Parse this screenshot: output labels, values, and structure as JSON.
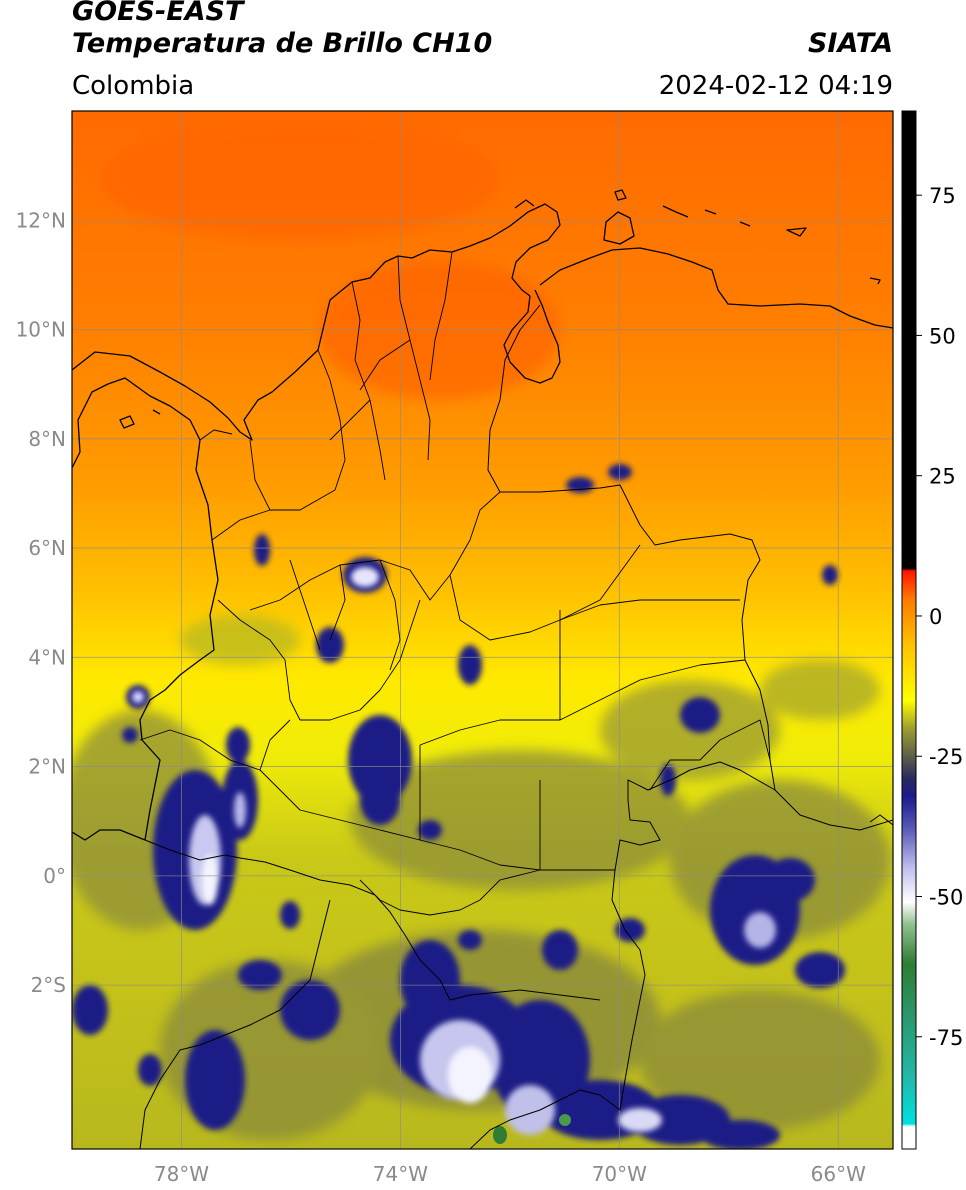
{
  "header": {
    "satellite": "GOES-EAST",
    "product": "Temperatura de Brillo CH10",
    "region": "Colombia",
    "agency": "SIATA",
    "datetime": "2024-02-12 04:19"
  },
  "map": {
    "lon_range": [
      -80,
      -65
    ],
    "lat_range": [
      -5,
      14
    ],
    "lat_ticks": [
      {
        "value": 12,
        "label": "12°N"
      },
      {
        "value": 10,
        "label": "10°N"
      },
      {
        "value": 8,
        "label": "8°N"
      },
      {
        "value": 6,
        "label": "6°N"
      },
      {
        "value": 4,
        "label": "4°N"
      },
      {
        "value": 2,
        "label": "2°N"
      },
      {
        "value": 0,
        "label": "0°"
      },
      {
        "value": -2,
        "label": "2°S"
      }
    ],
    "lon_ticks": [
      {
        "value": -78,
        "label": "78°W"
      },
      {
        "value": -74,
        "label": "74°W"
      },
      {
        "value": -70,
        "label": "70°W"
      },
      {
        "value": -66,
        "label": "66°W"
      }
    ],
    "gridlines": true
  },
  "colorbar": {
    "range": [
      -95,
      90
    ],
    "ticks": [
      {
        "value": 75,
        "label": "75"
      },
      {
        "value": 50,
        "label": "50"
      },
      {
        "value": 25,
        "label": "25"
      },
      {
        "value": 0,
        "label": "0"
      },
      {
        "value": -25,
        "label": "-25"
      },
      {
        "value": -50,
        "label": "-50"
      },
      {
        "value": -75,
        "label": "-75"
      }
    ],
    "stops": [
      {
        "value": -95,
        "color": "#ffffff"
      },
      {
        "value": -91,
        "color": "#ffffff"
      },
      {
        "value": -90.5,
        "color": "#00e0e0"
      },
      {
        "value": -82,
        "color": "#22b8a8"
      },
      {
        "value": -72,
        "color": "#2a9a70"
      },
      {
        "value": -62,
        "color": "#2e7d32"
      },
      {
        "value": -55,
        "color": "#8fc08f"
      },
      {
        "value": -51,
        "color": "#ffffff"
      },
      {
        "value": -45,
        "color": "#c0c0ee"
      },
      {
        "value": -38,
        "color": "#5a5ab8"
      },
      {
        "value": -32,
        "color": "#1a1a8c"
      },
      {
        "value": -29,
        "color": "#2a2a60"
      },
      {
        "value": -25,
        "color": "#5e5e48"
      },
      {
        "value": -20,
        "color": "#9e9e30"
      },
      {
        "value": -15,
        "color": "#ffff00"
      },
      {
        "value": -5,
        "color": "#ffc000"
      },
      {
        "value": 3,
        "color": "#ff7a00"
      },
      {
        "value": 8,
        "color": "#ff1400"
      },
      {
        "value": 8.5,
        "color": "#000000"
      },
      {
        "value": 90,
        "color": "#000000"
      }
    ]
  }
}
